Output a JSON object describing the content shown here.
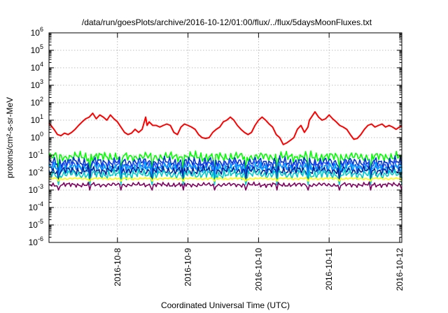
{
  "chart_data": {
    "type": "line",
    "title": "/data/run/goesPlots/archive/2016-10-12/01:00/flux/../flux/5daysMoonFluxes.txt",
    "xlabel": "Coordinated Universal Time (UTC)",
    "ylabel": "protons/cm²-s-sr-MeV",
    "y_scale": "log",
    "ylim": [
      1e-06,
      1000000.0
    ],
    "xlim": [
      -0.97,
      4.03
    ],
    "x_unit": "days relative to 2016-10-08 00:00 UTC",
    "grid": true,
    "y_ticks": [
      {
        "base": "10",
        "exp": "-6",
        "value": 1e-06
      },
      {
        "base": "10",
        "exp": "-5",
        "value": 1e-05
      },
      {
        "base": "10",
        "exp": "-4",
        "value": 0.0001
      },
      {
        "base": "10",
        "exp": "-3",
        "value": 0.001
      },
      {
        "base": "10",
        "exp": "-2",
        "value": 0.01
      },
      {
        "base": "10",
        "exp": "-1",
        "value": 0.1
      },
      {
        "base": "10",
        "exp": "0",
        "value": 1
      },
      {
        "base": "10",
        "exp": "1",
        "value": 10
      },
      {
        "base": "10",
        "exp": "2",
        "value": 100
      },
      {
        "base": "10",
        "exp": "3",
        "value": 1000
      },
      {
        "base": "10",
        "exp": "4",
        "value": 10000
      },
      {
        "base": "10",
        "exp": "5",
        "value": 100000
      },
      {
        "base": "10",
        "exp": "6",
        "value": 1000000
      }
    ],
    "x_ticks": [
      {
        "label": "2016-10-8",
        "value": 0
      },
      {
        "label": "2016-10-9",
        "value": 1
      },
      {
        "label": "2016-10-10",
        "value": 2
      },
      {
        "label": "2016-10-11",
        "value": 3
      },
      {
        "label": "2016-10-12",
        "value": 4
      }
    ],
    "series": [
      {
        "color": "#ff0000",
        "x": [
          -0.97,
          -0.9,
          -0.85,
          -0.8,
          -0.75,
          -0.7,
          -0.65,
          -0.6,
          -0.55,
          -0.5,
          -0.45,
          -0.4,
          -0.35,
          -0.3,
          -0.25,
          -0.2,
          -0.15,
          -0.1,
          -0.05,
          0.0,
          0.05,
          0.1,
          0.15,
          0.2,
          0.25,
          0.3,
          0.35,
          0.4,
          0.42,
          0.45,
          0.5,
          0.55,
          0.6,
          0.65,
          0.7,
          0.75,
          0.8,
          0.85,
          0.9,
          0.95,
          1.0,
          1.05,
          1.1,
          1.15,
          1.2,
          1.25,
          1.3,
          1.35,
          1.4,
          1.45,
          1.5,
          1.55,
          1.6,
          1.65,
          1.7,
          1.75,
          1.8,
          1.85,
          1.9,
          1.95,
          2.0,
          2.05,
          2.1,
          2.15,
          2.2,
          2.25,
          2.3,
          2.35,
          2.4,
          2.45,
          2.5,
          2.55,
          2.6,
          2.65,
          2.7,
          2.72,
          2.75,
          2.8,
          2.85,
          2.9,
          2.95,
          3.0,
          3.05,
          3.1,
          3.15,
          3.2,
          3.25,
          3.3,
          3.35,
          3.4,
          3.45,
          3.5,
          3.55,
          3.6,
          3.65,
          3.7,
          3.75,
          3.8,
          3.85,
          3.9,
          3.95,
          4.03
        ],
        "y": [
          7,
          3,
          1.5,
          1.3,
          1.8,
          1.5,
          2,
          3,
          5,
          8,
          12,
          15,
          25,
          12,
          20,
          15,
          10,
          20,
          12,
          8,
          4,
          2,
          1.5,
          1.8,
          3,
          2,
          3,
          15,
          5,
          8,
          5,
          5,
          4,
          5,
          6,
          5,
          2,
          1.5,
          4,
          6,
          5,
          4,
          3,
          1.5,
          1,
          0.9,
          1,
          2,
          3,
          4,
          8,
          10,
          15,
          10,
          5,
          3,
          2,
          1.5,
          2,
          5,
          10,
          15,
          10,
          6,
          4,
          1.5,
          1,
          0.4,
          0.5,
          0.7,
          1,
          3,
          5,
          2,
          4,
          10,
          15,
          30,
          15,
          10,
          12,
          20,
          12,
          8,
          5,
          4,
          3,
          1.5,
          0.8,
          0.9,
          1.5,
          3,
          5,
          6,
          4,
          5,
          6,
          4,
          5,
          4,
          3,
          5
        ]
      },
      {
        "color": "#00ff00",
        "base": 0.08,
        "amp": 0.55,
        "phase": 0.0
      },
      {
        "color": "#0033cc",
        "base": 0.04,
        "amp": 0.55,
        "phase": 1.3
      },
      {
        "color": "#2255ff",
        "base": 0.025,
        "amp": 0.6,
        "phase": 2.1
      },
      {
        "color": "#00aaff",
        "base": 0.018,
        "amp": 0.55,
        "phase": 0.7
      },
      {
        "color": "#002299",
        "base": 0.013,
        "amp": 0.5,
        "phase": 3.0
      },
      {
        "color": "#00cccc",
        "base": 0.008,
        "amp": 0.5,
        "phase": 1.9
      },
      {
        "color": "#ffff00",
        "base": 0.0045,
        "amp": 0.12,
        "phase": 0.4
      },
      {
        "color": "#800060",
        "base": 0.002,
        "amp": 0.25,
        "phase": 2.6
      }
    ]
  }
}
